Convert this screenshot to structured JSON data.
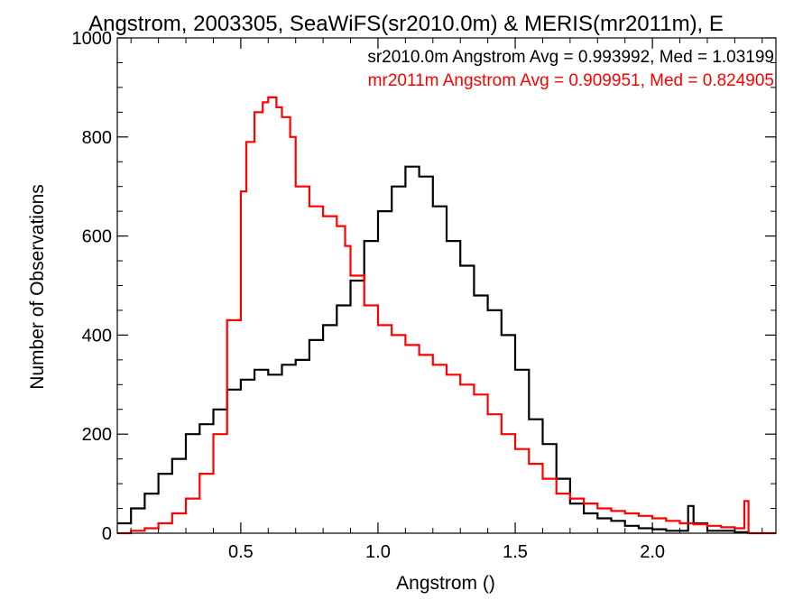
{
  "chart_data": {
    "type": "line",
    "step": true,
    "title": "Angstrom, 2003305, SeaWiFS(sr2010.0m) & MERIS(mr2011m), E",
    "xlabel": "Angstrom ()",
    "ylabel": "Number of Observations",
    "xlim": [
      0.05,
      2.45
    ],
    "ylim": [
      0,
      1000
    ],
    "xticks": [
      0.5,
      1.0,
      1.5,
      2.0
    ],
    "xtick_labels": [
      "0.5",
      "1.0",
      "1.5",
      "2.0"
    ],
    "yticks": [
      0,
      200,
      400,
      600,
      800,
      1000
    ],
    "ytick_labels": [
      "0",
      "200",
      "400",
      "600",
      "800",
      "1000"
    ],
    "grid": false,
    "legend": "top-right",
    "annotations": [
      {
        "text": "sr2010.0m Angstrom Avg = 0.993992, Med = 1.03199",
        "color": "#000000"
      },
      {
        "text": "mr2011m Angstrom Avg = 0.909951, Med = 0.824905",
        "color": "#ff0000"
      }
    ],
    "series": [
      {
        "color": "#000000",
        "x": [
          0.05,
          0.1,
          0.15,
          0.2,
          0.25,
          0.3,
          0.35,
          0.4,
          0.45,
          0.5,
          0.55,
          0.6,
          0.65,
          0.7,
          0.75,
          0.8,
          0.85,
          0.9,
          0.95,
          1.0,
          1.05,
          1.1,
          1.15,
          1.2,
          1.25,
          1.3,
          1.35,
          1.4,
          1.45,
          1.5,
          1.55,
          1.6,
          1.65,
          1.7,
          1.75,
          1.8,
          1.85,
          1.9,
          1.95,
          2.0,
          2.05,
          2.1,
          2.13,
          2.15,
          2.2,
          2.3,
          2.35
        ],
        "y": [
          20,
          50,
          80,
          120,
          150,
          200,
          220,
          250,
          290,
          310,
          330,
          320,
          340,
          350,
          390,
          420,
          460,
          510,
          590,
          650,
          700,
          740,
          720,
          660,
          590,
          540,
          480,
          450,
          400,
          330,
          230,
          180,
          110,
          60,
          40,
          30,
          25,
          15,
          10,
          8,
          5,
          5,
          55,
          20,
          5,
          2,
          0
        ]
      },
      {
        "color": "#ff0000",
        "x": [
          0.05,
          0.1,
          0.15,
          0.2,
          0.25,
          0.3,
          0.35,
          0.4,
          0.45,
          0.5,
          0.52,
          0.55,
          0.58,
          0.6,
          0.63,
          0.65,
          0.68,
          0.7,
          0.75,
          0.8,
          0.85,
          0.88,
          0.9,
          0.95,
          1.0,
          1.05,
          1.1,
          1.15,
          1.2,
          1.25,
          1.3,
          1.35,
          1.4,
          1.45,
          1.5,
          1.55,
          1.6,
          1.65,
          1.7,
          1.75,
          1.8,
          1.85,
          1.9,
          1.95,
          2.0,
          2.05,
          2.1,
          2.15,
          2.2,
          2.25,
          2.3,
          2.33,
          2.335,
          2.35,
          2.45
        ],
        "y": [
          0,
          5,
          10,
          20,
          40,
          70,
          120,
          200,
          430,
          690,
          790,
          850,
          870,
          880,
          860,
          840,
          800,
          700,
          660,
          640,
          620,
          580,
          520,
          460,
          420,
          400,
          380,
          360,
          340,
          320,
          300,
          280,
          240,
          200,
          170,
          140,
          110,
          80,
          70,
          60,
          50,
          45,
          40,
          35,
          30,
          25,
          20,
          18,
          15,
          12,
          10,
          10,
          65,
          0,
          0
        ]
      }
    ]
  }
}
